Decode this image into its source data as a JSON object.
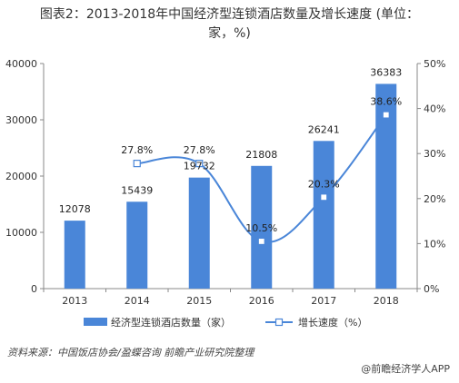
{
  "title": {
    "line1": "图表2：2013-2018年中国经济型连锁酒店数量及增长速度 (单位：",
    "line2": "家，%)"
  },
  "chart_data": {
    "type": "bar",
    "categories": [
      "2013",
      "2014",
      "2015",
      "2016",
      "2017",
      "2018"
    ],
    "series": [
      {
        "name": "经济型连锁酒店数量（家）",
        "type": "bar",
        "axis": "left",
        "values": [
          12078,
          15439,
          19732,
          21808,
          26241,
          36383
        ],
        "labels": [
          "12078",
          "15439",
          "19732",
          "21808",
          "26241",
          "36383"
        ],
        "color": "#4a86d8"
      },
      {
        "name": "增长速度（%）",
        "type": "line",
        "axis": "right",
        "values": [
          null,
          27.8,
          27.8,
          10.5,
          20.3,
          38.6
        ],
        "labels": [
          "",
          "27.8%",
          "27.8%",
          "10.5%",
          "20.3%",
          "38.6%"
        ],
        "color": "#4a86d8"
      }
    ],
    "y_left": {
      "min": 0,
      "max": 40000,
      "ticks": [
        0,
        10000,
        20000,
        30000,
        40000
      ],
      "tick_labels": [
        "0",
        "10000",
        "20000",
        "30000",
        "40000"
      ]
    },
    "y_right": {
      "min": 0,
      "max": 50,
      "ticks": [
        0,
        10,
        20,
        30,
        40,
        50
      ],
      "tick_labels": [
        "0%",
        "10%",
        "20%",
        "30%",
        "40%",
        "50%"
      ]
    },
    "grid": false,
    "legend_placement": "bottom"
  },
  "source": "资料来源：中国饭店协会/盈蝶咨询 前瞻产业研究院整理",
  "credit": "@前瞻经济学人APP",
  "colors": {
    "bar": "#4a86d8",
    "line": "#4a86d8",
    "axis": "#888888"
  }
}
